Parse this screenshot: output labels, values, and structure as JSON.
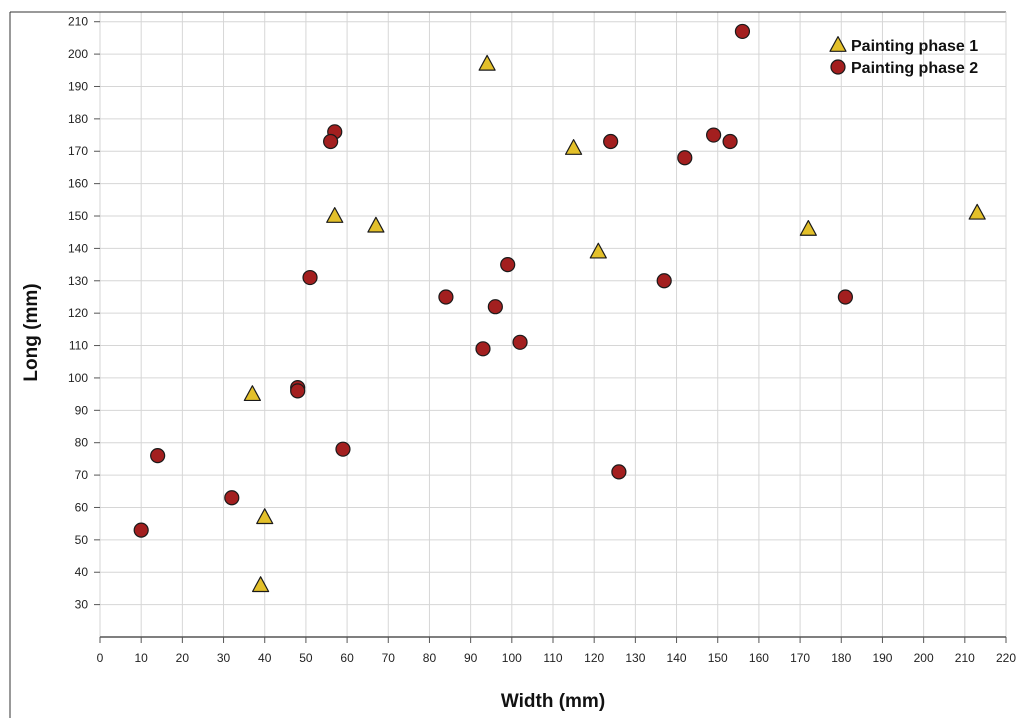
{
  "chart_data": {
    "type": "scatter",
    "title": "",
    "xlabel": "Width (mm)",
    "ylabel": "Long (mm)",
    "xlim": [
      0,
      220
    ],
    "ylim": [
      20,
      213
    ],
    "x_ticks": [
      0,
      10,
      20,
      30,
      40,
      50,
      60,
      70,
      80,
      90,
      100,
      110,
      120,
      130,
      140,
      150,
      160,
      170,
      180,
      190,
      200,
      210,
      220
    ],
    "y_ticks": [
      30,
      40,
      50,
      60,
      70,
      80,
      90,
      100,
      110,
      120,
      130,
      140,
      150,
      160,
      170,
      180,
      190,
      200,
      210
    ],
    "grid": true,
    "legend_position": "top-right",
    "series": [
      {
        "name": "Painting phase 1",
        "marker": "triangle",
        "color": "#e3c02a",
        "points": [
          {
            "x": 94,
            "y": 197
          },
          {
            "x": 115,
            "y": 171
          },
          {
            "x": 57,
            "y": 150
          },
          {
            "x": 67,
            "y": 147
          },
          {
            "x": 121,
            "y": 139
          },
          {
            "x": 172,
            "y": 146
          },
          {
            "x": 213,
            "y": 151
          },
          {
            "x": 37,
            "y": 95
          },
          {
            "x": 40,
            "y": 57
          },
          {
            "x": 39,
            "y": 36
          }
        ]
      },
      {
        "name": "Painting phase 2",
        "marker": "circle",
        "color": "#a31f1f",
        "points": [
          {
            "x": 156,
            "y": 207
          },
          {
            "x": 57,
            "y": 176
          },
          {
            "x": 56,
            "y": 173
          },
          {
            "x": 124,
            "y": 173
          },
          {
            "x": 149,
            "y": 175
          },
          {
            "x": 153,
            "y": 173
          },
          {
            "x": 142,
            "y": 168
          },
          {
            "x": 99,
            "y": 135
          },
          {
            "x": 51,
            "y": 131
          },
          {
            "x": 137,
            "y": 130
          },
          {
            "x": 84,
            "y": 125
          },
          {
            "x": 181,
            "y": 125
          },
          {
            "x": 96,
            "y": 122
          },
          {
            "x": 102,
            "y": 111
          },
          {
            "x": 93,
            "y": 109
          },
          {
            "x": 48,
            "y": 97
          },
          {
            "x": 48,
            "y": 96
          },
          {
            "x": 59,
            "y": 78
          },
          {
            "x": 14,
            "y": 76
          },
          {
            "x": 126,
            "y": 71
          },
          {
            "x": 32,
            "y": 63
          },
          {
            "x": 10,
            "y": 53
          }
        ]
      }
    ]
  }
}
